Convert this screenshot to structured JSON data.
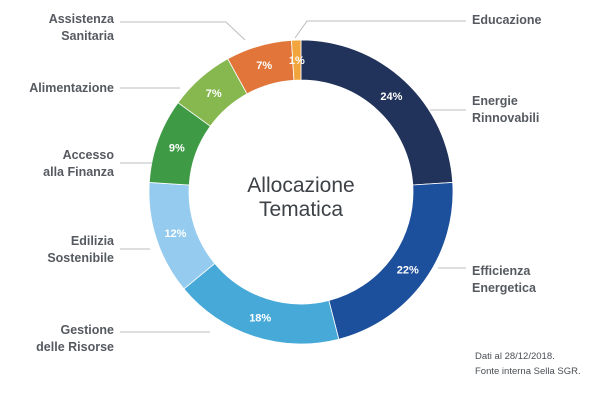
{
  "chart_data": {
    "type": "pie",
    "donut": true,
    "title_lines": [
      "Allocazione",
      "Tematica"
    ],
    "unit": "%",
    "slices": [
      {
        "label_lines": [
          "Energie",
          "Rinnovabili"
        ],
        "value": 24,
        "color": "#22335b"
      },
      {
        "label_lines": [
          "Efficienza",
          "Energetica"
        ],
        "value": 22,
        "color": "#1c4f9c"
      },
      {
        "label_lines": [
          "Gestione",
          "delle Risorse"
        ],
        "value": 18,
        "color": "#46a9d8"
      },
      {
        "label_lines": [
          "Edilizia",
          "Sostenibile"
        ],
        "value": 12,
        "color": "#94cbef"
      },
      {
        "label_lines": [
          "Accesso",
          "alla Finanza"
        ],
        "value": 9,
        "color": "#3e9a45"
      },
      {
        "label_lines": [
          "Alimentazione"
        ],
        "value": 7,
        "color": "#87b850"
      },
      {
        "label_lines": [
          "Assistenza",
          "Sanitaria"
        ],
        "value": 7,
        "color": "#e2763a"
      },
      {
        "label_lines": [
          "Educazione"
        ],
        "value": 1,
        "color": "#f2a53c"
      }
    ],
    "legend_placement": "around"
  },
  "footnote": [
    "Dati al 28/12/2018.",
    "Fonte interna Sella SGR."
  ]
}
